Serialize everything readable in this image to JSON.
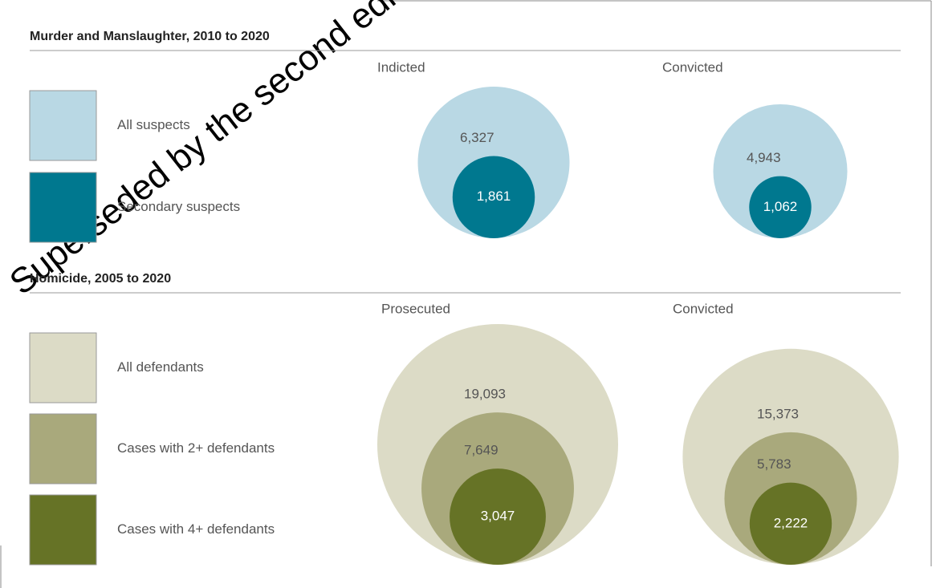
{
  "watermark": "Superseded by the second edition,",
  "chart_data": [
    {
      "type": "nested_circles",
      "title": "Murder and Manslaughter, 2010 to 2020",
      "categories": [
        "Indicted",
        "Convicted"
      ],
      "series": [
        {
          "name": "All suspects",
          "color": "#b9d8e4",
          "values": [
            6327,
            4943
          ],
          "value_labels": [
            "6,327",
            "4,943"
          ]
        },
        {
          "name": "Secondary suspects",
          "color": "#00788f",
          "values": [
            1861,
            1062
          ],
          "value_labels": [
            "1,861",
            "1,062"
          ]
        }
      ]
    },
    {
      "type": "nested_circles",
      "title": "Homicide, 2005 to 2020",
      "categories": [
        "Prosecuted",
        "Convicted"
      ],
      "series": [
        {
          "name": "All defendants",
          "color": "#dcdbc6",
          "values": [
            19093,
            15373
          ],
          "value_labels": [
            "19,093",
            "15,373"
          ]
        },
        {
          "name": "Cases with 2+ defendants",
          "color": "#a9a97c",
          "values": [
            7649,
            5783
          ],
          "value_labels": [
            "7,649",
            "5,783"
          ]
        },
        {
          "name": "Cases with 4+ defendants",
          "color": "#667326",
          "values": [
            3047,
            2222
          ],
          "value_labels": [
            "3,047",
            "2,222"
          ]
        }
      ]
    }
  ]
}
